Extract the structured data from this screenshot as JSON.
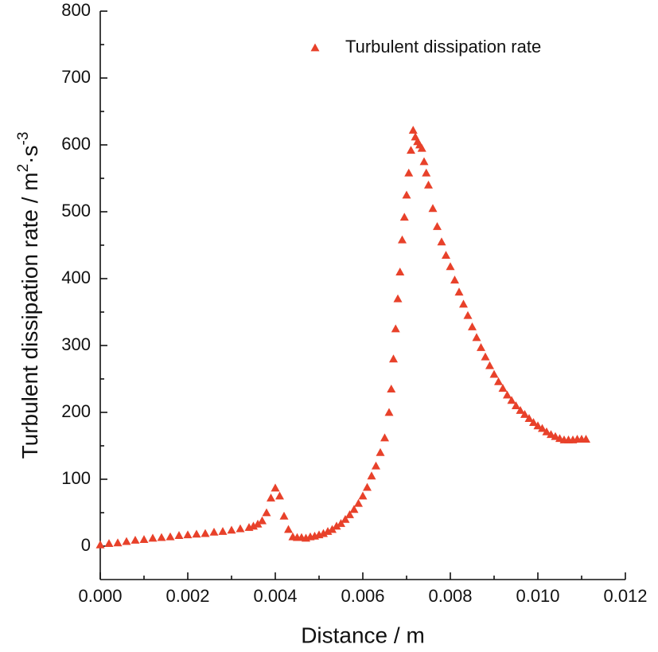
{
  "chart_data": {
    "type": "scatter",
    "xlabel": "Distance / m",
    "ylabel": [
      "Turbulent dissipation rate / m",
      "2",
      "·s",
      "-3"
    ],
    "legend": "upper right",
    "series": [
      {
        "name": "Turbulent dissipation rate",
        "color": "#e8412a",
        "marker": "triangle",
        "x": [
          0,
          0.0002,
          0.0004,
          0.0006,
          0.0008,
          0.001,
          0.0012,
          0.0014,
          0.0016,
          0.0018,
          0.002,
          0.0022,
          0.0024,
          0.0026,
          0.0028,
          0.003,
          0.0032,
          0.0034,
          0.0035,
          0.0036,
          0.0037,
          0.0038,
          0.0039,
          0.004,
          0.0041,
          0.0042,
          0.0043,
          0.0044,
          0.0045,
          0.0046,
          0.0047,
          0.0048,
          0.0049,
          0.005,
          0.0051,
          0.0052,
          0.0053,
          0.0054,
          0.0055,
          0.0056,
          0.0057,
          0.0058,
          0.0059,
          0.006,
          0.0061,
          0.0062,
          0.0063,
          0.0064,
          0.0065,
          0.0066,
          0.00665,
          0.0067,
          0.00675,
          0.0068,
          0.00685,
          0.0069,
          0.00695,
          0.007,
          0.00705,
          0.0071,
          0.00715,
          0.0072,
          0.00725,
          0.0073,
          0.00735,
          0.0074,
          0.00745,
          0.0075,
          0.0076,
          0.0077,
          0.0078,
          0.0079,
          0.008,
          0.0081,
          0.0082,
          0.0083,
          0.0084,
          0.0085,
          0.0086,
          0.0087,
          0.0088,
          0.0089,
          0.009,
          0.0091,
          0.0092,
          0.0093,
          0.0094,
          0.0095,
          0.0096,
          0.0097,
          0.0098,
          0.0099,
          0.01,
          0.0101,
          0.0102,
          0.0103,
          0.0104,
          0.0105,
          0.0106,
          0.0107,
          0.0108,
          0.0109,
          0.011,
          0.0111
        ],
        "values": [
          2,
          4,
          5,
          7,
          9,
          10,
          12,
          13,
          14,
          16,
          17,
          18,
          19,
          21,
          22,
          24,
          26,
          28,
          30,
          33,
          38,
          50,
          72,
          87,
          75,
          45,
          25,
          14,
          13,
          13,
          12,
          14,
          15,
          17,
          19,
          22,
          25,
          30,
          34,
          40,
          47,
          55,
          64,
          75,
          88,
          105,
          120,
          140,
          162,
          200,
          235,
          280,
          325,
          370,
          410,
          458,
          492,
          525,
          558,
          592,
          622,
          612,
          605,
          600,
          595,
          575,
          558,
          540,
          505,
          478,
          455,
          435,
          418,
          398,
          380,
          362,
          345,
          328,
          312,
          297,
          283,
          270,
          257,
          246,
          236,
          226,
          218,
          210,
          203,
          197,
          191,
          185,
          180,
          176,
          171,
          167,
          164,
          161,
          159,
          159,
          159,
          160,
          160,
          160
        ]
      }
    ],
    "xlim": [
      0,
      0.012
    ],
    "xticks": [
      {
        "value": 0,
        "label": "0.000"
      },
      {
        "value": 0.002,
        "label": "0.002"
      },
      {
        "value": 0.004,
        "label": "0.004"
      },
      {
        "value": 0.006,
        "label": "0.006"
      },
      {
        "value": 0.008,
        "label": "0.008"
      },
      {
        "value": 0.01,
        "label": "0.010"
      },
      {
        "value": 0.012,
        "label": "0.012"
      }
    ],
    "ylim": [
      -50,
      800
    ],
    "yticks": [
      0,
      100,
      200,
      300,
      400,
      500,
      600,
      700,
      800
    ]
  }
}
